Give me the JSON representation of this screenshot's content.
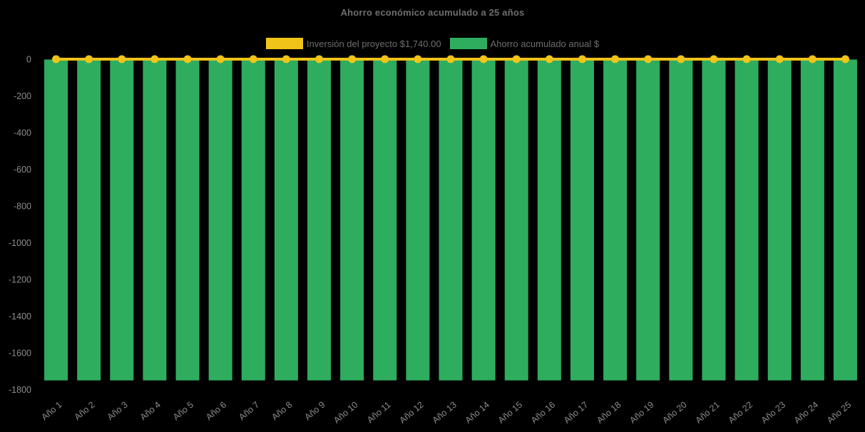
{
  "background": "#000000",
  "chart_data": {
    "type": "bar",
    "title": "Ahorro económico acumulado a 25 años",
    "categories": [
      "Año 1",
      "Año 2",
      "Año 3",
      "Año 4",
      "Año 5",
      "Año 6",
      "Año 7",
      "Año 8",
      "Año 9",
      "Año 10",
      "Año 11",
      "Año 12",
      "Año 13",
      "Año 14",
      "Año 15",
      "Año 16",
      "Año 17",
      "Año 18",
      "Año 19",
      "Año 20",
      "Año 21",
      "Año 22",
      "Año 23",
      "Año 24",
      "Año 25"
    ],
    "series": [
      {
        "name": "Inversión del proyecto $1,740.00",
        "type": "line",
        "color": "#F0C419",
        "marker": "circle",
        "values": [
          0,
          0,
          0,
          0,
          0,
          0,
          0,
          0,
          0,
          0,
          0,
          0,
          0,
          0,
          0,
          0,
          0,
          0,
          0,
          0,
          0,
          0,
          0,
          0,
          0
        ]
      },
      {
        "name": "Ahorro acumulado anual $",
        "type": "bar",
        "color": "#2EAD5F",
        "values": [
          -1750,
          -1750,
          -1750,
          -1750,
          -1750,
          -1750,
          -1750,
          -1750,
          -1750,
          -1750,
          -1750,
          -1750,
          -1750,
          -1750,
          -1750,
          -1750,
          -1750,
          -1750,
          -1750,
          -1750,
          -1750,
          -1750,
          -1750,
          -1750,
          -1750
        ]
      }
    ],
    "ylim": [
      -1800,
      0
    ],
    "yticks": [
      0,
      -200,
      -400,
      -600,
      -800,
      -1000,
      -1200,
      -1400,
      -1600,
      -1800
    ],
    "grid": false,
    "legend_position": "top",
    "x_label_rotation": -40,
    "text_color_title": "#6e6e6e",
    "text_color_ticks": "#8c8c8c"
  }
}
